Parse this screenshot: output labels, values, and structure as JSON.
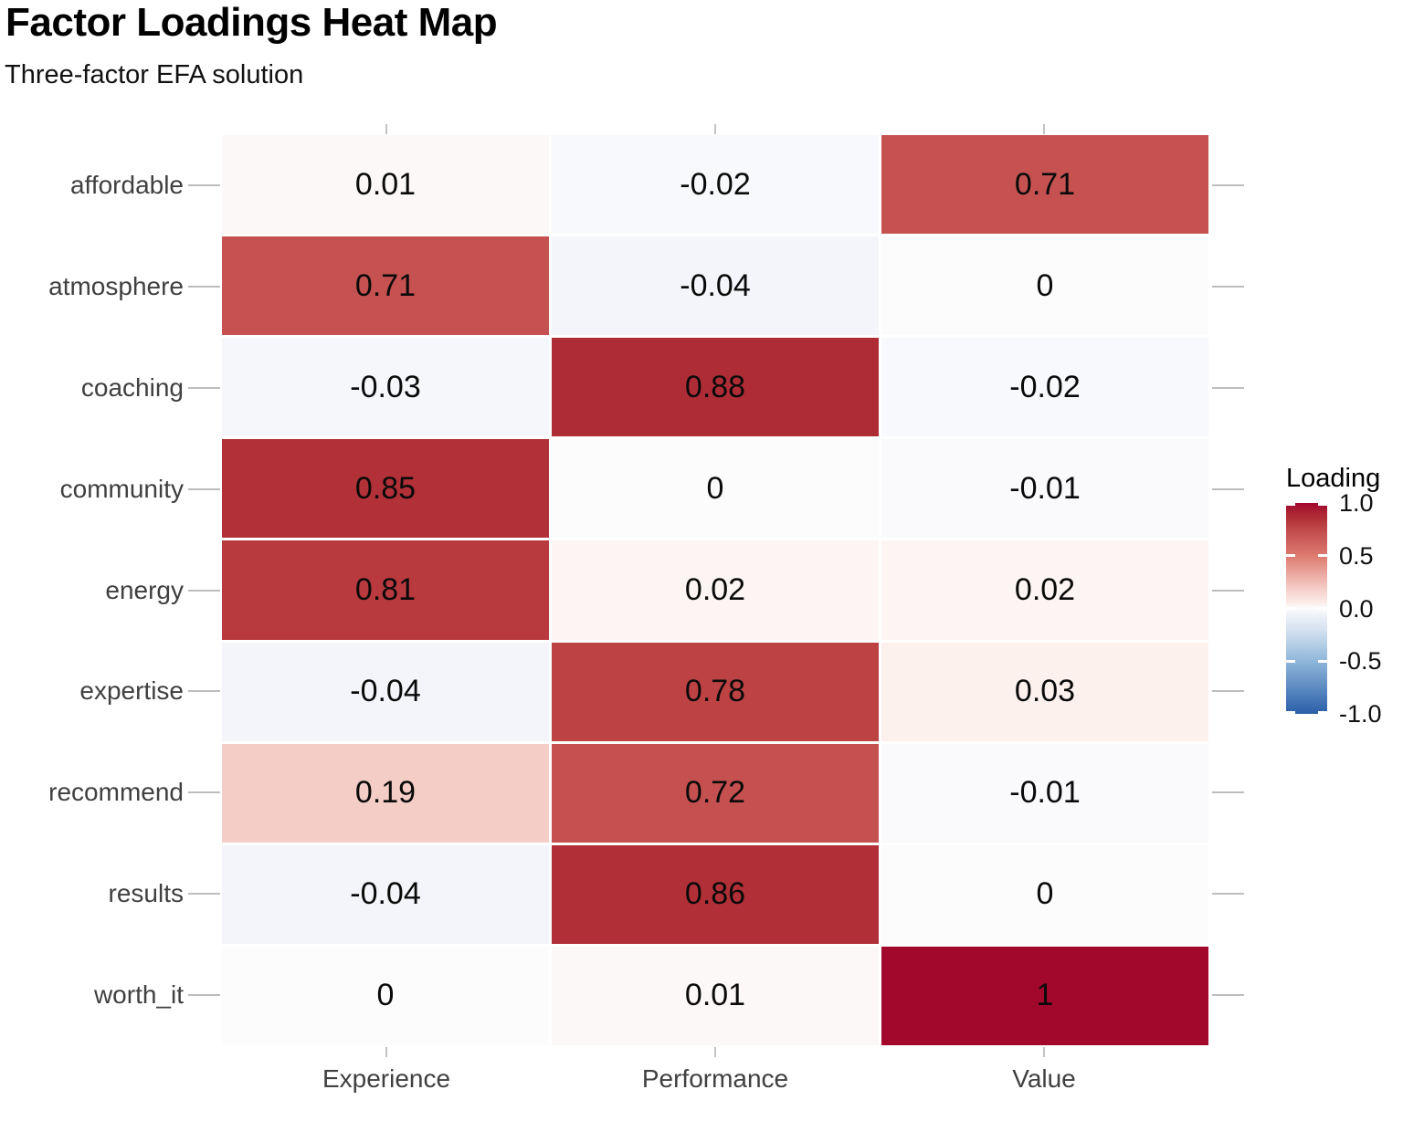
{
  "title": "Factor Loadings Heat Map",
  "subtitle": "Three-factor EFA solution",
  "chart_data": {
    "type": "heatmap",
    "title": "Factor Loadings Heat Map",
    "subtitle": "Three-factor EFA solution",
    "columns": [
      "Experience",
      "Performance",
      "Value"
    ],
    "rows": [
      "affordable",
      "atmosphere",
      "coaching",
      "community",
      "energy",
      "expertise",
      "recommend",
      "results",
      "worth_it"
    ],
    "values": [
      [
        0.01,
        -0.02,
        0.71
      ],
      [
        0.71,
        -0.04,
        0
      ],
      [
        -0.03,
        0.88,
        -0.02
      ],
      [
        0.85,
        0,
        -0.01
      ],
      [
        0.81,
        0.02,
        0.02
      ],
      [
        -0.04,
        0.78,
        0.03
      ],
      [
        0.19,
        0.72,
        -0.01
      ],
      [
        -0.04,
        0.86,
        0
      ],
      [
        0,
        0.01,
        1
      ]
    ],
    "value_range": [
      -1,
      1
    ],
    "grid": false,
    "legend_position": "right",
    "legend": {
      "title": "Loading",
      "ticks": [
        {
          "label": "1.0",
          "value": 1
        },
        {
          "label": "0.5",
          "value": 0.5
        },
        {
          "label": "0.0",
          "value": 0
        },
        {
          "label": "-0.5",
          "value": -0.5
        },
        {
          "label": "-1.0",
          "value": -1
        }
      ]
    },
    "colormap": [
      [
        -1.0,
        "#2a5ea8"
      ],
      [
        -0.5,
        "#8fb7da"
      ],
      [
        -0.2,
        "#d5e2f0"
      ],
      [
        -0.04,
        "#f3f5fa"
      ],
      [
        0.0,
        "#fcfcfd"
      ],
      [
        0.03,
        "#fdf1ee"
      ],
      [
        0.19,
        "#f5cdc7"
      ],
      [
        0.5,
        "#dd7a6f"
      ],
      [
        0.71,
        "#c55251"
      ],
      [
        0.78,
        "#bc4244"
      ],
      [
        0.85,
        "#b23037"
      ],
      [
        0.88,
        "#ae2c35"
      ],
      [
        1.0,
        "#a2072c"
      ]
    ]
  }
}
